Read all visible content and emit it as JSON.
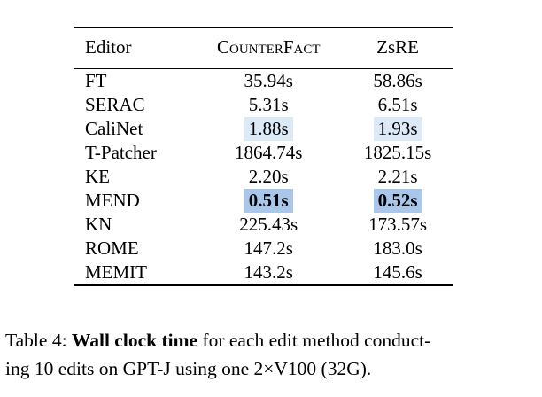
{
  "table": {
    "headers": {
      "editor": "Editor",
      "counterfact": "CounterFact",
      "zsre": "ZsRE"
    },
    "rows": [
      {
        "editor": "FT",
        "counterfact": "35.94s",
        "zsre": "58.86s",
        "highlight": "none"
      },
      {
        "editor": "SERAC",
        "counterfact": "5.31s",
        "zsre": "6.51s",
        "highlight": "none"
      },
      {
        "editor": "CaliNet",
        "counterfact": "1.88s",
        "zsre": "1.93s",
        "highlight": "light"
      },
      {
        "editor": "T-Patcher",
        "counterfact": "1864.74s",
        "zsre": "1825.15s",
        "highlight": "none"
      },
      {
        "editor": "KE",
        "counterfact": "2.20s",
        "zsre": "2.21s",
        "highlight": "none"
      },
      {
        "editor": "MEND",
        "counterfact": "0.51s",
        "zsre": "0.52s",
        "highlight": "strong"
      },
      {
        "editor": "KN",
        "counterfact": "225.43s",
        "zsre": "173.57s",
        "highlight": "none"
      },
      {
        "editor": "ROME",
        "counterfact": "147.2s",
        "zsre": "183.0s",
        "highlight": "none"
      },
      {
        "editor": "MEMIT",
        "counterfact": "143.2s",
        "zsre": "145.6s",
        "highlight": "none"
      }
    ],
    "colors": {
      "highlight_light": "#dce9f7",
      "highlight_strong": "#a9c7ea"
    }
  },
  "caption": {
    "label": "Table 4:",
    "bold": "Wall clock time",
    "line1_rest": "for each edit method conduct-",
    "line2": "ing 10 edits on GPT-J using one 2×V100 (32G)."
  }
}
